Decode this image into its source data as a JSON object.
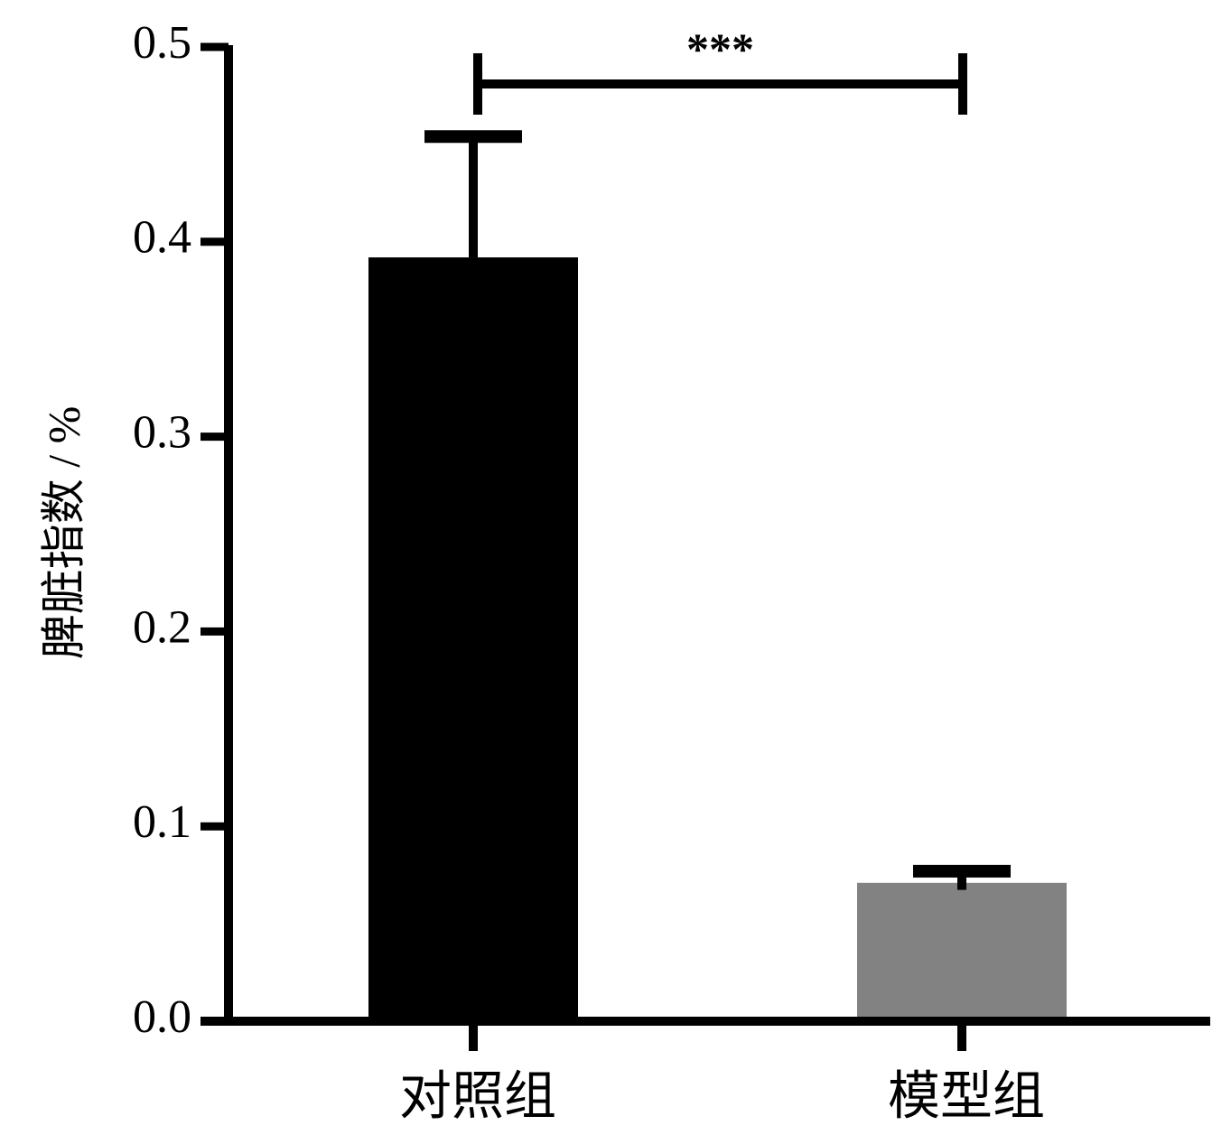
{
  "chart_data": {
    "type": "bar",
    "title": "",
    "xlabel": "",
    "ylabel": "脾脏指数 / %",
    "ylim": [
      0,
      0.5
    ],
    "yticks": [
      0.0,
      0.1,
      0.2,
      0.3,
      0.4,
      0.5
    ],
    "ytick_labels": [
      "0.0",
      "0.1",
      "0.2",
      "0.3",
      "0.4",
      "0.5"
    ],
    "categories": [
      "对照组",
      "模型组"
    ],
    "values": [
      0.392,
      0.071
    ],
    "errors": [
      0.062,
      0.006
    ],
    "bar_colors": [
      "#000000",
      "#828282"
    ],
    "grid": false,
    "legend": "none",
    "significance": {
      "between": [
        "对照组",
        "模型组"
      ],
      "label": "***",
      "y": 0.481
    }
  }
}
